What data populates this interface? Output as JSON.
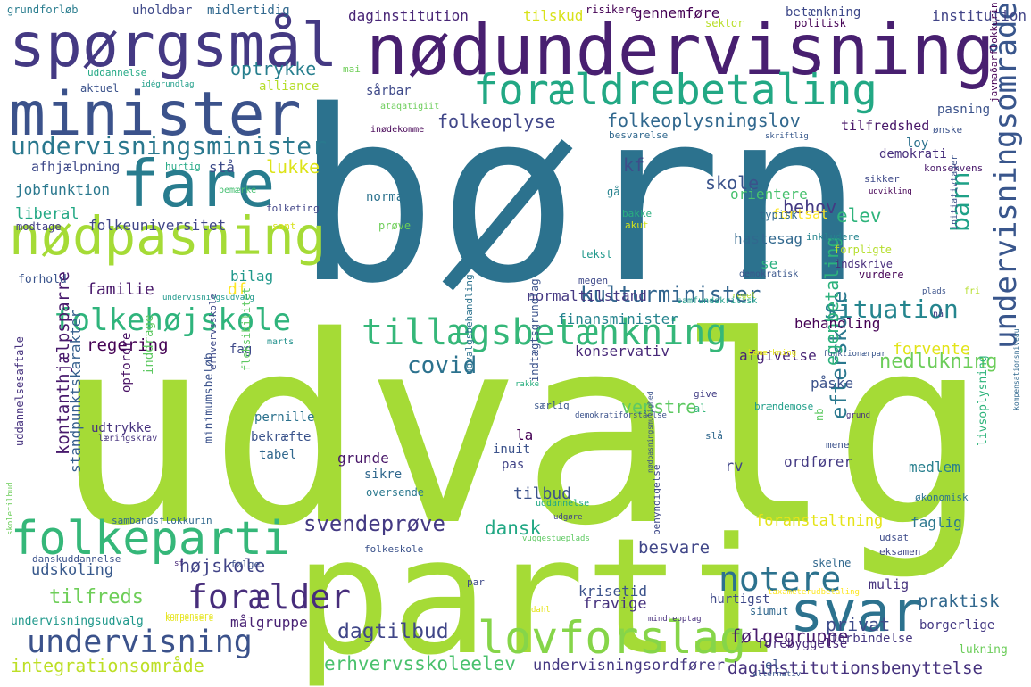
{
  "words": [
    {
      "text": "udvalg",
      "color": "#a5db36"
    },
    {
      "text": "børn",
      "color": "#2c728e"
    },
    {
      "text": "parti",
      "color": "#a5db36"
    },
    {
      "text": "nødundervisning",
      "color": "#481f70"
    },
    {
      "text": "spørgsmål",
      "color": "#443983"
    },
    {
      "text": "minister",
      "color": "#3b528b"
    },
    {
      "text": "forældrebetaling",
      "color": "#22a884"
    },
    {
      "text": "fare",
      "color": "#287c8e"
    },
    {
      "text": "nødpasning",
      "color": "#a5db36"
    },
    {
      "text": "svar",
      "color": "#2c728e"
    },
    {
      "text": "lovforslag",
      "color": "#86d549"
    },
    {
      "text": "folkeparti",
      "color": "#35b779"
    },
    {
      "text": "undervisningsminister",
      "color": "#2a788e"
    },
    {
      "text": "tillægsbetænkning",
      "color": "#35b779"
    },
    {
      "text": "undervisningsområde",
      "color": "#39568c"
    },
    {
      "text": "folkehøjskole",
      "color": "#2fb47c"
    },
    {
      "text": "notere",
      "color": "#2c728e"
    },
    {
      "text": "undervisning",
      "color": "#3b528b"
    },
    {
      "text": "forælder",
      "color": "#472d7b"
    },
    {
      "text": "situation",
      "color": "#25858e"
    },
    {
      "text": "barn",
      "color": "#1fa187"
    },
    {
      "text": "covid",
      "color": "#2c728e"
    },
    {
      "text": "folkeoplyse",
      "color": "#404688"
    },
    {
      "text": "folkeoplysningslov",
      "color": "#31688e"
    },
    {
      "text": "kulturminister",
      "color": "#32658e"
    },
    {
      "text": "svendeprøve",
      "color": "#443a83"
    },
    {
      "text": "dagtilbud",
      "color": "#404688"
    },
    {
      "text": "erhvervsskoleelev",
      "color": "#4ac16d"
    },
    {
      "text": "integrationsområde",
      "color": "#bddf26"
    },
    {
      "text": "daginstitutionsbenyttelse",
      "color": "#46327e"
    },
    {
      "text": "undervisningsordfører",
      "color": "#453882"
    },
    {
      "text": "følgegruppe",
      "color": "#481b6d"
    },
    {
      "text": "privat",
      "color": "#3e4c8a"
    },
    {
      "text": "praktisk",
      "color": "#31688e"
    },
    {
      "text": "efterskole",
      "color": "#2a788e"
    },
    {
      "text": "egenbetaling",
      "color": "#2db27d"
    },
    {
      "text": "nedlukning",
      "color": "#6ccd5a"
    },
    {
      "text": "kontanthjælpsparre",
      "color": "#481a6c"
    },
    {
      "text": "standpunktskarakter",
      "color": "#355f8d"
    },
    {
      "text": "optrykke",
      "color": "#277f8e"
    },
    {
      "text": "lukke",
      "color": "#dde318"
    },
    {
      "text": "stå",
      "color": "#3e4c8a"
    },
    {
      "text": "kf",
      "color": "#3d4e8a"
    },
    {
      "text": "skole",
      "color": "#3a538b"
    },
    {
      "text": "behov",
      "color": "#443a83"
    },
    {
      "text": "elev",
      "color": "#2fb47c"
    },
    {
      "text": "orientere",
      "color": "#48c16e"
    },
    {
      "text": "fortsat",
      "color": "#fde725"
    },
    {
      "text": "hastesag",
      "color": "#31688e"
    },
    {
      "text": "se",
      "color": "#2ab07f"
    },
    {
      "text": "normaltilstand",
      "color": "#453882"
    },
    {
      "text": "finansminister",
      "color": "#25848e"
    },
    {
      "text": "regering",
      "color": "#440154"
    },
    {
      "text": "fag",
      "color": "#3e4989"
    },
    {
      "text": "konservativ",
      "color": "#482878"
    },
    {
      "text": "afgivelse",
      "color": "#482475"
    },
    {
      "text": "behandling",
      "color": "#440154"
    },
    {
      "text": "forvente",
      "color": "#e2e418"
    },
    {
      "text": "påske",
      "color": "#3b528b"
    },
    {
      "text": "venstre",
      "color": "#5ec962"
    },
    {
      "text": "dansk",
      "color": "#22a884"
    },
    {
      "text": "besvare",
      "color": "#404688"
    },
    {
      "text": "højskole",
      "color": "#414487"
    },
    {
      "text": "tilfreds",
      "color": "#6ece58"
    },
    {
      "text": "udskoling",
      "color": "#38598c"
    },
    {
      "text": "målgruppe",
      "color": "#482173"
    },
    {
      "text": "fravige",
      "color": "#46327e"
    },
    {
      "text": "krisetid",
      "color": "#3b528b"
    },
    {
      "text": "hurtigst",
      "color": "#3e4989"
    },
    {
      "text": "forebyggelse",
      "color": "#482878"
    },
    {
      "text": "forbindelse",
      "color": "#453781"
    },
    {
      "text": "lukning",
      "color": "#6ccd5a"
    },
    {
      "text": "el",
      "color": "#3a548c"
    },
    {
      "text": "borgerlige",
      "color": "#443983"
    },
    {
      "text": "faglig",
      "color": "#2a778e"
    },
    {
      "text": "medlem",
      "color": "#277f8e"
    },
    {
      "text": "mulig",
      "color": "#46327e"
    },
    {
      "text": "ordfører",
      "color": "#443a83"
    },
    {
      "text": "rv",
      "color": "#404588"
    },
    {
      "text": "foranstaltning",
      "color": "#e5e419"
    },
    {
      "text": "tilbud",
      "color": "#3b528b"
    },
    {
      "text": "grunde",
      "color": "#481769"
    },
    {
      "text": "sikre",
      "color": "#31688e"
    },
    {
      "text": "la",
      "color": "#440154"
    },
    {
      "text": "pas",
      "color": "#414487"
    },
    {
      "text": "inuit",
      "color": "#3b528b"
    },
    {
      "text": "tabel",
      "color": "#31688e"
    },
    {
      "text": "bekræfte",
      "color": "#3a538b"
    },
    {
      "text": "pernille",
      "color": "#2c728e"
    },
    {
      "text": "udtrykke",
      "color": "#46327e"
    },
    {
      "text": "familie",
      "color": "#48186a"
    },
    {
      "text": "bilag",
      "color": "#1f988b"
    },
    {
      "text": "df",
      "color": "#fde725"
    },
    {
      "text": "liberal",
      "color": "#22a884"
    },
    {
      "text": "jobfunktion",
      "color": "#2a788e"
    },
    {
      "text": "afhjælpning",
      "color": "#3e4989"
    },
    {
      "text": "folkeuniversitet",
      "color": "#404688"
    },
    {
      "text": "modtage",
      "color": "#433e85"
    },
    {
      "text": "forhold",
      "color": "#3a548c"
    },
    {
      "text": "daginstitution",
      "color": "#482576"
    },
    {
      "text": "tilskud",
      "color": "#d8e219"
    },
    {
      "text": "gennemføre",
      "color": "#440154"
    },
    {
      "text": "betænkning",
      "color": "#3e4989"
    },
    {
      "text": "institution",
      "color": "#414487"
    },
    {
      "text": "uholdbar",
      "color": "#3e4989"
    },
    {
      "text": "midlertidig",
      "color": "#31688e"
    },
    {
      "text": "grundforløb",
      "color": "#287c8e"
    },
    {
      "text": "risikere",
      "color": "#440154"
    },
    {
      "text": "politisk",
      "color": "#440154"
    },
    {
      "text": "sektor",
      "color": "#b8de29"
    },
    {
      "text": "tilfredshed",
      "color": "#481769"
    },
    {
      "text": "demokrati",
      "color": "#472f7d"
    },
    {
      "text": "loy",
      "color": "#2c728e"
    },
    {
      "text": "pasning",
      "color": "#3b528b"
    },
    {
      "text": "konsekvens",
      "color": "#48186a"
    },
    {
      "text": "alliance",
      "color": "#b5de2b"
    },
    {
      "text": "sårbar",
      "color": "#3e4989"
    },
    {
      "text": "uddannelse",
      "color": "#22a884"
    },
    {
      "text": "aktuel",
      "color": "#3b528b"
    },
    {
      "text": "idégrundlag",
      "color": "#1f9e89"
    },
    {
      "text": "mai",
      "color": "#6ece58"
    },
    {
      "text": "normal",
      "color": "#2c728e"
    },
    {
      "text": "prøve",
      "color": "#6ece58"
    },
    {
      "text": "tekst",
      "color": "#1f988b"
    },
    {
      "text": "megen",
      "color": "#3e4989"
    },
    {
      "text": "gå",
      "color": "#26828e"
    },
    {
      "text": "bakke",
      "color": "#29af7f"
    },
    {
      "text": "akut",
      "color": "#d2e21b"
    },
    {
      "text": "typisk",
      "color": "#31688e"
    },
    {
      "text": "demokratisk",
      "color": "#39568c"
    },
    {
      "text": "indskrive",
      "color": "#472d7b"
    },
    {
      "text": "vurdere",
      "color": "#440154"
    },
    {
      "text": "forpligte",
      "color": "#b5de2b"
    },
    {
      "text": "inkludere",
      "color": "#25848e"
    },
    {
      "text": "sikker",
      "color": "#3e4989"
    },
    {
      "text": "udvikling",
      "color": "#440154"
    },
    {
      "text": "sant",
      "color": "#d8e219"
    },
    {
      "text": "folketing",
      "color": "#414487"
    },
    {
      "text": "bemærke",
      "color": "#44bf70"
    },
    {
      "text": "hurtig",
      "color": "#22a884"
    },
    {
      "text": "besvarelse",
      "color": "#31688e"
    },
    {
      "text": "inødekomme",
      "color": "#440154"
    },
    {
      "text": "ataqatigiit",
      "color": "#6ccd5a"
    },
    {
      "text": "skriftlig",
      "color": "#38598c"
    },
    {
      "text": "ønske",
      "color": "#3b528b"
    },
    {
      "text": "marts",
      "color": "#21918c"
    },
    {
      "text": "nå",
      "color": "#443983"
    },
    {
      "text": "fri",
      "color": "#b5de2b"
    },
    {
      "text": "plads",
      "color": "#3b528b"
    },
    {
      "text": "regel",
      "color": "#b5de2b"
    },
    {
      "text": "samfundskritisk",
      "color": "#1f9e89"
    },
    {
      "text": "give",
      "color": "#433e85"
    },
    {
      "text": "al",
      "color": "#35b779"
    },
    {
      "text": "brændemose",
      "color": "#1f9e89"
    },
    {
      "text": "grund",
      "color": "#472f7d"
    },
    {
      "text": "funktionærpar",
      "color": "#39568c"
    },
    {
      "text": "mene",
      "color": "#3b528b"
    },
    {
      "text": "nb",
      "color": "#5ec962"
    },
    {
      "text": "bemærkning",
      "color": "#e7e419"
    },
    {
      "text": "særlig",
      "color": "#39568c"
    },
    {
      "text": "rakke",
      "color": "#29af7f"
    },
    {
      "text": "slå",
      "color": "#31688e"
    },
    {
      "text": "demokratiforståelse",
      "color": "#3b528b"
    },
    {
      "text": "fleksibilitet",
      "color": "#5ec962"
    },
    {
      "text": "indtægtsgrundlag",
      "color": "#3b528b"
    },
    {
      "text": "læringskrav",
      "color": "#46327e"
    },
    {
      "text": "oversende",
      "color": "#2a788e"
    },
    {
      "text": "økonomisk",
      "color": "#2c728e"
    },
    {
      "text": "udgøre",
      "color": "#404688"
    },
    {
      "text": "udsat",
      "color": "#3e4c8a"
    },
    {
      "text": "eksamen",
      "color": "#404688"
    },
    {
      "text": "skelne",
      "color": "#31688e"
    },
    {
      "text": "kompensere",
      "color": "#e5e419"
    },
    {
      "text": "siumut",
      "color": "#31688e"
    },
    {
      "text": "alternativ",
      "color": "#39568c"
    },
    {
      "text": "mindreoptag",
      "color": "#472f7d"
    },
    {
      "text": "taxameterudbetaling",
      "color": "#fde725"
    },
    {
      "text": "dahl",
      "color": "#e5e419"
    },
    {
      "text": "følge",
      "color": "#3b528b"
    },
    {
      "text": "par",
      "color": "#3e4989"
    },
    {
      "text": "sambandsflokkurin",
      "color": "#31688e"
    },
    {
      "text": "vuggestueplads",
      "color": "#5ec962"
    },
    {
      "text": "danskuddannelse",
      "color": "#3b528b"
    },
    {
      "text": "undervisningsudvalg",
      "color": "#1f988b"
    },
    {
      "text": "kompensere",
      "color": "#e5e419"
    },
    {
      "text": "uddannelsesaftale",
      "color": "#46327e"
    },
    {
      "text": "minimumsbeløb",
      "color": "#3b528b"
    },
    {
      "text": "opfordre",
      "color": "#471063"
    },
    {
      "text": "inddrage",
      "color": "#5ec962"
    },
    {
      "text": "erhvervsskole",
      "color": "#3e4989"
    },
    {
      "text": "udvalgsbehandling",
      "color": "#2c728e"
    },
    {
      "text": "initiativtager",
      "color": "#3b528b"
    },
    {
      "text": "javnaðarflokkurin",
      "color": "#440154"
    },
    {
      "text": "benyndigelse",
      "color": "#3e4989"
    },
    {
      "text": "livsoplysning",
      "color": "#2fb47c"
    },
    {
      "text": "kompensationsniveau",
      "color": "#31688e"
    },
    {
      "text": "nødpasningsmulighed",
      "color": "#3b528b"
    },
    {
      "text": "skoletilbud",
      "color": "#6ccd5a"
    },
    {
      "text": "sf",
      "color": "#482878"
    },
    {
      "text": "undervisningsudvalg",
      "color": "#1f988b"
    },
    {
      "text": "folkeskole",
      "color": "#3b528b"
    },
    {
      "text": "uddannelse",
      "color": "#22a884"
    }
  ]
}
